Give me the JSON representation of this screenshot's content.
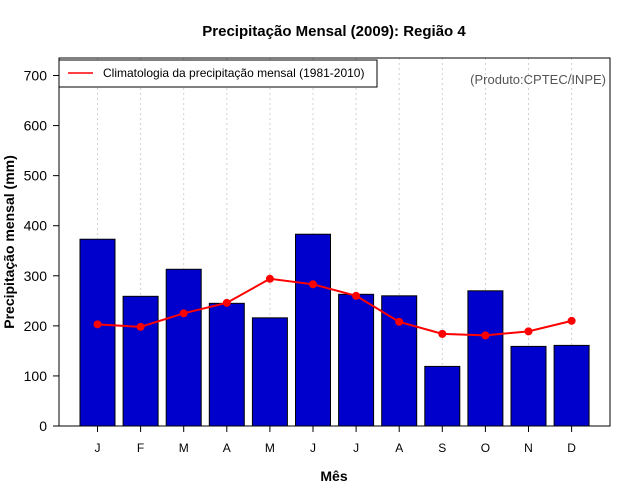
{
  "chart_data": {
    "type": "bar",
    "title": "Precipitação Mensal (2009): Região 4",
    "xlabel": "Mês",
    "ylabel": "Precipitação mensal (mm)",
    "ylim": [
      0,
      700
    ],
    "yticks": [
      0,
      100,
      200,
      300,
      400,
      500,
      600,
      700
    ],
    "categories": [
      "J",
      "F",
      "M",
      "A",
      "M",
      "J",
      "J",
      "A",
      "S",
      "O",
      "N",
      "D"
    ],
    "series": [
      {
        "name": "Precipitação mensal 2009",
        "kind": "bar",
        "color": "#0000CC",
        "values": [
          373,
          259,
          313,
          245,
          216,
          383,
          263,
          260,
          119,
          270,
          159,
          161
        ]
      },
      {
        "name": "Climatologia da precipitação mensal (1981-2010)",
        "kind": "line",
        "color": "#FF0000",
        "values": [
          203,
          198,
          225,
          246,
          294,
          283,
          260,
          208,
          184,
          181,
          189,
          210
        ]
      }
    ],
    "grid": "vertical dotted",
    "legend_position": "top-left",
    "credit": "(Produto:CPTEC/INPE)"
  }
}
